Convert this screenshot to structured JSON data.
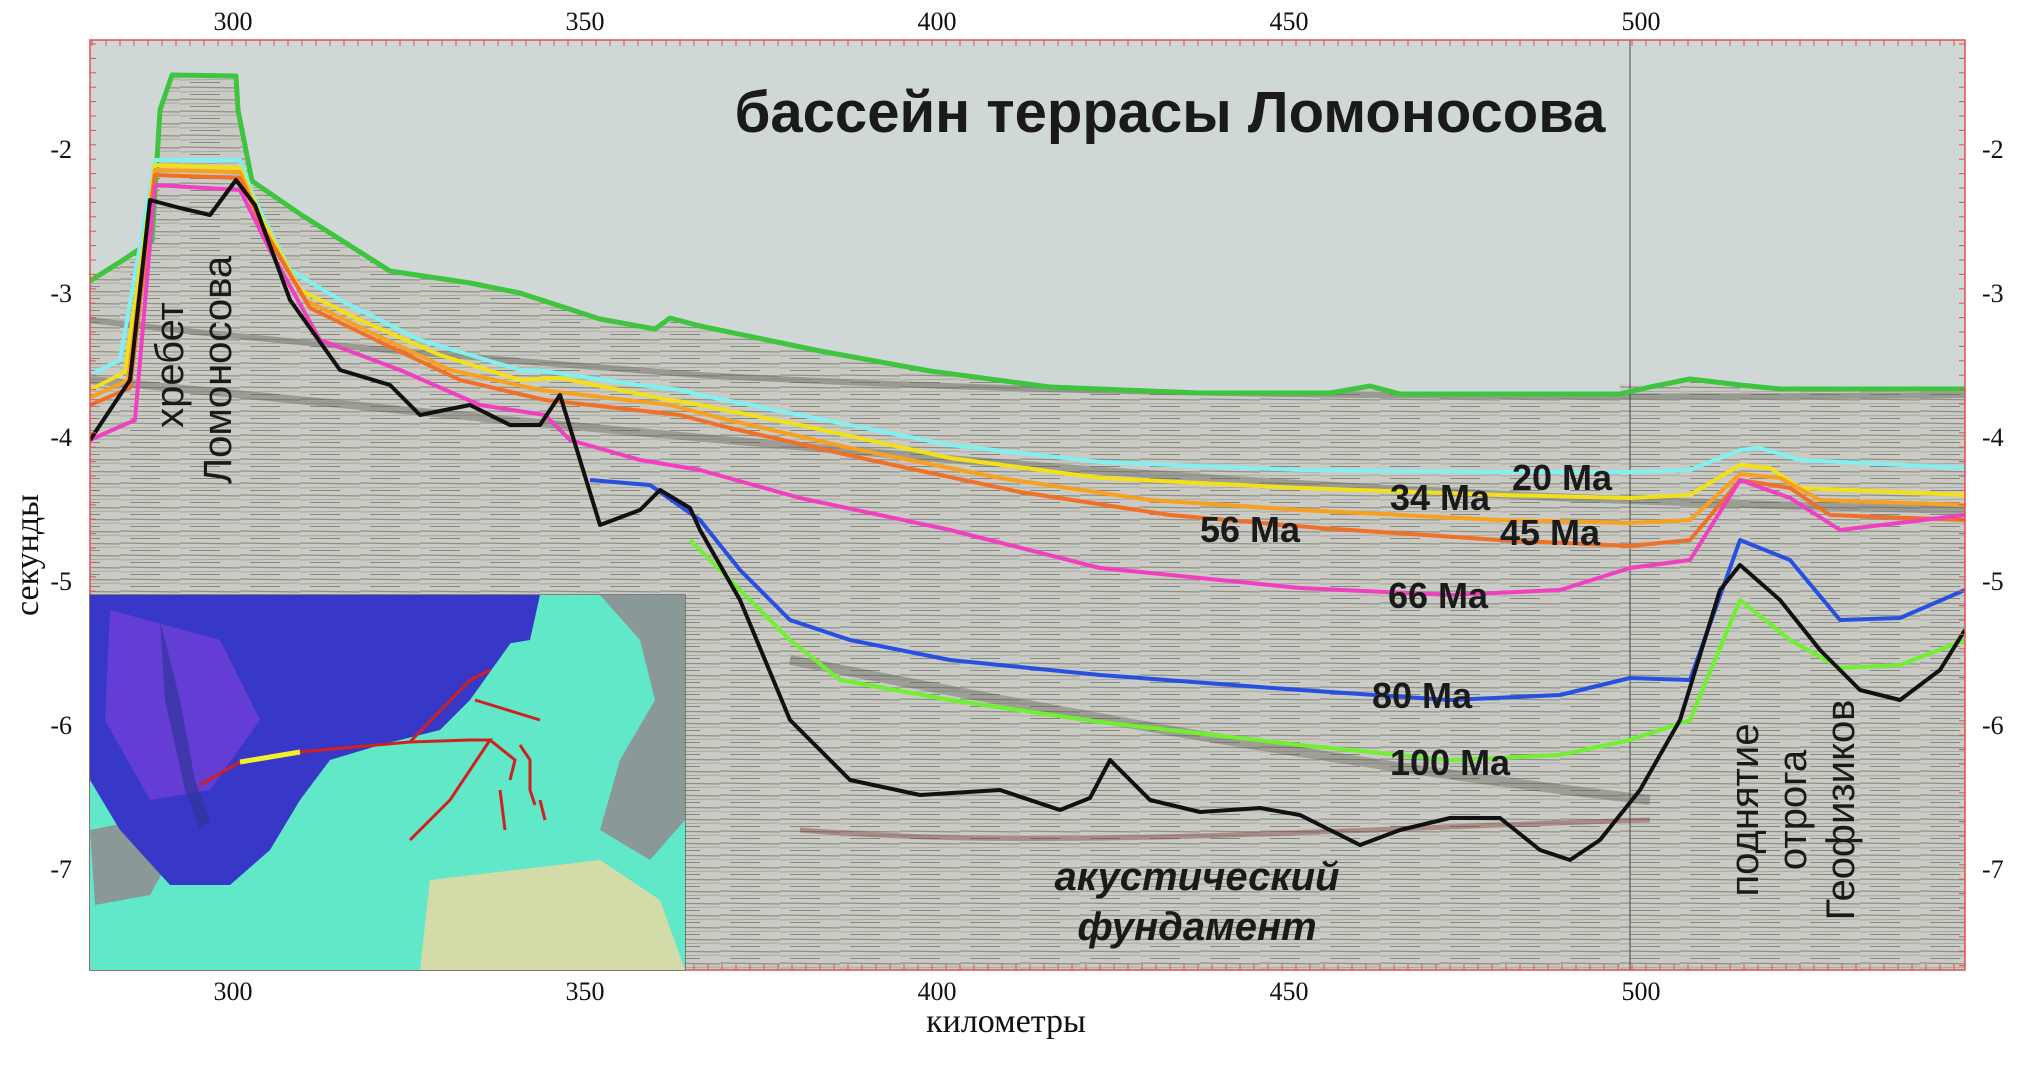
{
  "title": "бассейн террасы Ломоносова",
  "x_axis": {
    "label": "километры",
    "ticks": [
      "300",
      "350",
      "400",
      "450",
      "500"
    ]
  },
  "y_axis": {
    "label": "секунды",
    "ticks": [
      "-2",
      "-3",
      "-4",
      "-5",
      "-6",
      "-7"
    ]
  },
  "horizons": [
    {
      "age": "20 Ma",
      "color": "#80f0f0"
    },
    {
      "age": "34 Ma",
      "color": "#f2e018"
    },
    {
      "age": "45 Ma",
      "color": "#f07028"
    },
    {
      "age": "56 Ma",
      "color": "#f8a020"
    },
    {
      "age": "66 Ma",
      "color": "#f040c0"
    },
    {
      "age": "80 Ma",
      "color": "#2850e0"
    },
    {
      "age": "100 Ma",
      "color": "#70f030"
    }
  ],
  "features": {
    "ridge_line1": "хребет",
    "ridge_line2": "Ломоносова",
    "rise_line1": "поднятие",
    "rise_line2": "отрога",
    "rise_line3": "Геофизиков",
    "basement_line1": "акустический",
    "basement_line2": "фундамент"
  },
  "colors": {
    "water": "#cfd8d6",
    "seafloor": "#3ec43e",
    "basement": "#111111",
    "frame": "#e05050",
    "map_deep": "#3838c8",
    "map_shelf": "#60e8c8",
    "map_land": "#8a9898",
    "profile_line": "#d02020",
    "profile_highlight": "#f0f030"
  }
}
